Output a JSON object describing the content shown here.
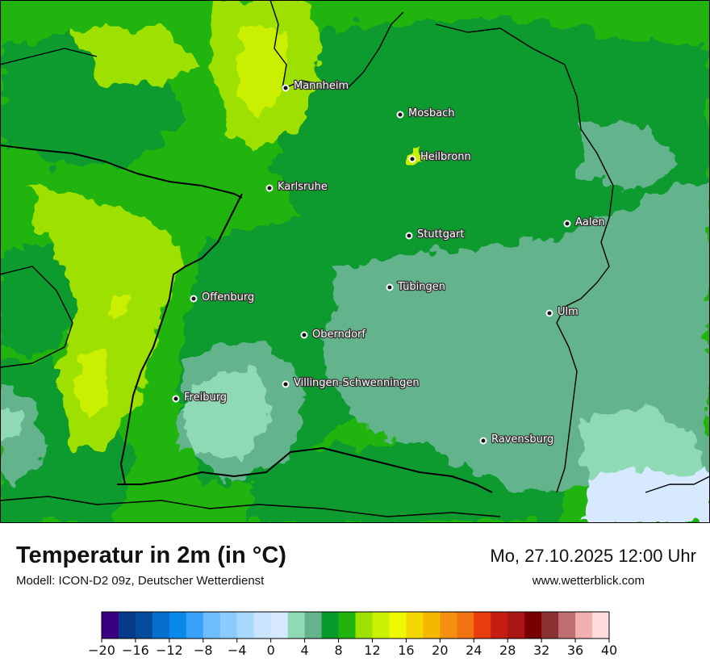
{
  "map": {
    "cities": [
      {
        "name": "Mannheim"
      },
      {
        "name": "Mosbach"
      },
      {
        "name": "Heilbronn"
      },
      {
        "name": "Karlsruhe"
      },
      {
        "name": "Aalen"
      },
      {
        "name": "Stuttgart"
      },
      {
        "name": "Tübingen"
      },
      {
        "name": "Offenburg"
      },
      {
        "name": "Ulm"
      },
      {
        "name": "Oberndorf"
      },
      {
        "name": "Villingen-Schwenningen"
      },
      {
        "name": "Freiburg"
      },
      {
        "name": "Ravensburg"
      }
    ],
    "colors": {
      "cool_teal": "#64b38c",
      "pale_teal": "#8fd9b4",
      "dark_green": "#079a2d",
      "mid_green": "#21b40f",
      "yellow_green": "#9ee000",
      "lime": "#cbef00",
      "pale_blue": "#d6e9ff"
    }
  },
  "footer": {
    "title": "Temperatur in 2m (in °C)",
    "subtitle": "Modell: ICON-D2 09z, Deutscher Wetterdienst",
    "datetime": "Mo, 27.10.2025 12:00 Uhr",
    "website": "www.wetterblick.com"
  },
  "legend": {
    "ticks": [
      "−20",
      "−16",
      "−12",
      "−8",
      "−4",
      "0",
      "4",
      "8",
      "12",
      "16",
      "20",
      "24",
      "28",
      "32",
      "36",
      "40"
    ],
    "colors": [
      "#3a0082",
      "#053a8a",
      "#054c9c",
      "#066fcc",
      "#0a89ed",
      "#3aa1fb",
      "#6cbcfe",
      "#8ccbfe",
      "#a9d9fe",
      "#c9e5fe",
      "#d6e9ff",
      "#8fd9b4",
      "#64b38c",
      "#079a2d",
      "#21b40f",
      "#9ee000",
      "#cbef00",
      "#edf900",
      "#f4d700",
      "#f5b700",
      "#f58f10",
      "#f07410",
      "#e73c0c",
      "#c71c12",
      "#aa1616",
      "#7a0000",
      "#8b3232",
      "#c07070",
      "#f0b0b0",
      "#ffdcdc"
    ]
  }
}
